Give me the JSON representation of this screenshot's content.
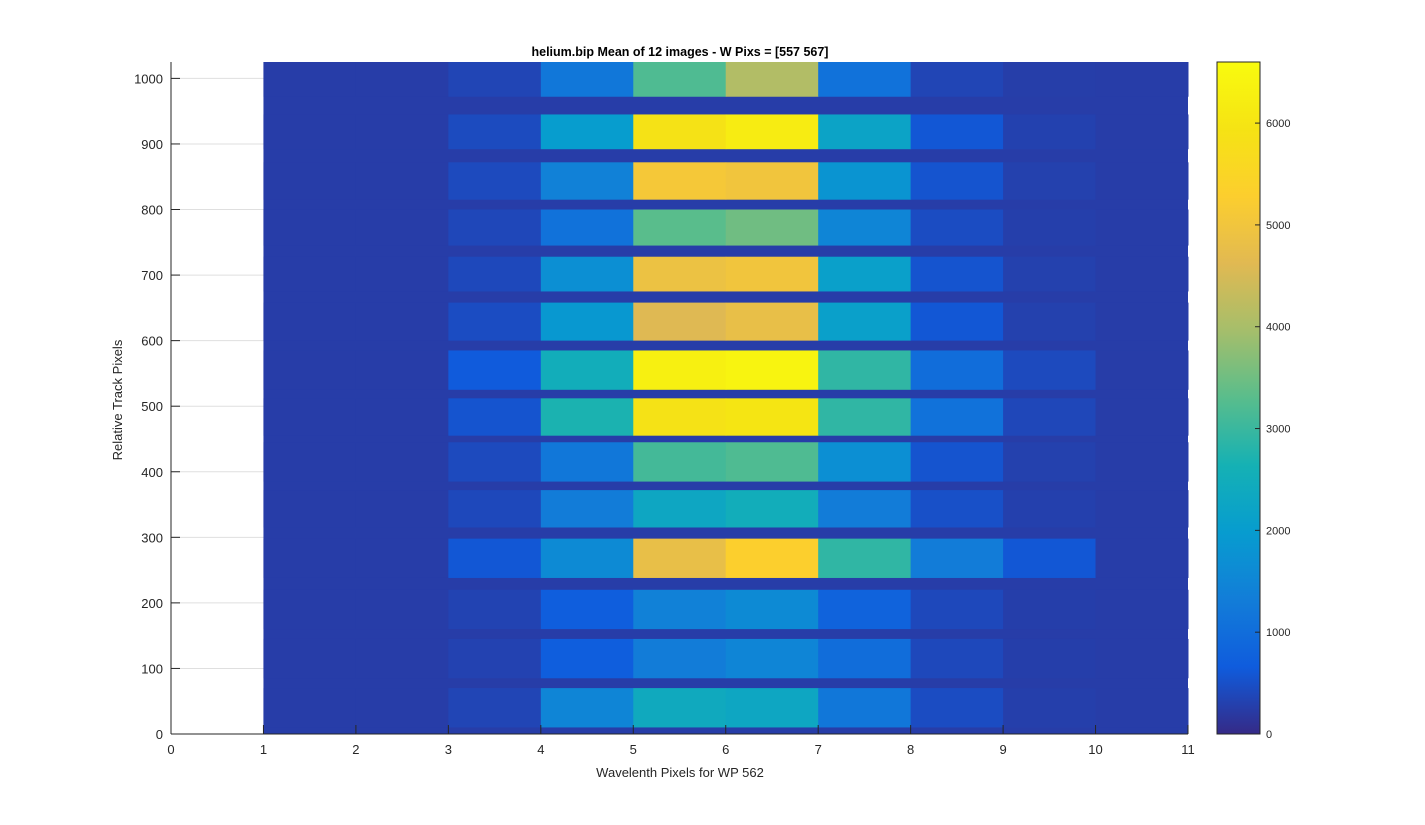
{
  "chart_data": {
    "type": "heatmap",
    "title": "helium.bip  Mean of 12 images - W Pixs = [557  567]",
    "xlabel": "Wavelenth Pixels for WP 562",
    "ylabel": "Relative Track Pixels",
    "xlim": [
      0,
      11
    ],
    "ylim": [
      0,
      1025
    ],
    "xticks": [
      0,
      1,
      2,
      3,
      4,
      5,
      6,
      7,
      8,
      9,
      10,
      11
    ],
    "yticks": [
      0,
      100,
      200,
      300,
      400,
      500,
      600,
      700,
      800,
      900,
      1000
    ],
    "grid": true,
    "colorbar": {
      "ticks": [
        0,
        1000,
        2000,
        3000,
        4000,
        5000,
        6000
      ],
      "range": [
        0,
        6600
      ],
      "colormap": "parula"
    },
    "cell_columns": [
      {
        "x0": 1,
        "x1": 2
      },
      {
        "x0": 2,
        "x1": 3
      },
      {
        "x0": 3,
        "x1": 4
      },
      {
        "x0": 4,
        "x1": 5
      },
      {
        "x0": 5,
        "x1": 6
      },
      {
        "x0": 6,
        "x1": 7
      },
      {
        "x0": 7,
        "x1": 8
      },
      {
        "x0": 8,
        "x1": 9
      },
      {
        "x0": 9,
        "x1": 10
      },
      {
        "x0": 10,
        "x1": 11
      }
    ],
    "background_value": 250,
    "bands": [
      {
        "y0": 10,
        "y1": 70,
        "values": [
          250,
          250,
          350,
          1500,
          2400,
          2300,
          1200,
          450,
          280,
          250
        ]
      },
      {
        "y0": 85,
        "y1": 145,
        "values": [
          250,
          250,
          320,
          700,
          1300,
          1500,
          1000,
          400,
          270,
          250
        ]
      },
      {
        "y0": 160,
        "y1": 220,
        "values": [
          250,
          250,
          330,
          700,
          1400,
          1600,
          800,
          400,
          270,
          250
        ]
      },
      {
        "y0": 238,
        "y1": 298,
        "values": [
          250,
          250,
          600,
          1600,
          4800,
          5300,
          2900,
          1300,
          600,
          250
        ]
      },
      {
        "y0": 315,
        "y1": 372,
        "values": [
          250,
          250,
          400,
          1300,
          2300,
          2500,
          1300,
          500,
          290,
          250
        ]
      },
      {
        "y0": 385,
        "y1": 445,
        "values": [
          250,
          250,
          420,
          1200,
          3100,
          3200,
          1700,
          550,
          300,
          250
        ]
      },
      {
        "y0": 455,
        "y1": 512,
        "values": [
          250,
          250,
          550,
          2700,
          5900,
          6000,
          2900,
          1100,
          380,
          250
        ]
      },
      {
        "y0": 525,
        "y1": 585,
        "values": [
          250,
          250,
          650,
          2500,
          6300,
          6400,
          2900,
          1000,
          420,
          250
        ]
      },
      {
        "y0": 600,
        "y1": 658,
        "values": [
          250,
          250,
          450,
          1900,
          4600,
          4800,
          2100,
          600,
          300,
          250
        ]
      },
      {
        "y0": 675,
        "y1": 728,
        "values": [
          250,
          250,
          400,
          1700,
          4900,
          5000,
          2100,
          550,
          300,
          250
        ]
      },
      {
        "y0": 745,
        "y1": 800,
        "values": [
          250,
          250,
          380,
          1100,
          3300,
          3500,
          1500,
          450,
          280,
          250
        ]
      },
      {
        "y0": 815,
        "y1": 872,
        "values": [
          250,
          250,
          420,
          1400,
          5100,
          5000,
          1800,
          550,
          300,
          250
        ]
      },
      {
        "y0": 892,
        "y1": 945,
        "values": [
          250,
          250,
          430,
          2000,
          5900,
          6200,
          2200,
          600,
          310,
          250
        ]
      },
      {
        "y0": 972,
        "y1": 1025,
        "values": [
          250,
          250,
          350,
          1200,
          3200,
          4100,
          1100,
          350,
          260,
          250
        ]
      }
    ]
  }
}
